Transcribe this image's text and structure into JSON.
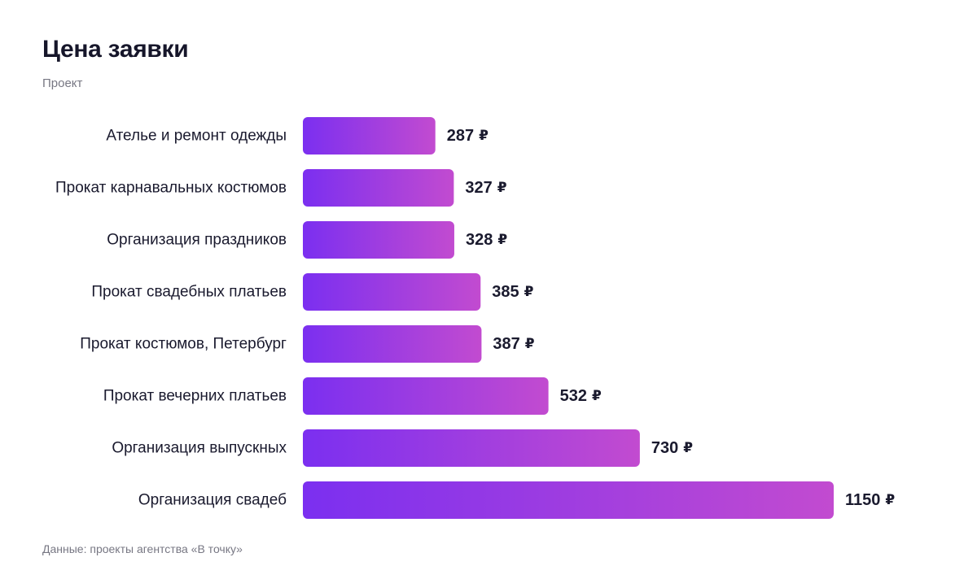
{
  "title": "Цена заявки",
  "subtitle": "Проект",
  "footer": "Данные: проекты агентства «В точку»",
  "colors": {
    "bar_start": "#7b2ff0",
    "bar_end": "#c24bd0",
    "text": "#1a1a2e",
    "muted": "#777783"
  },
  "chart_data": {
    "type": "bar",
    "orientation": "horizontal",
    "unit": "₽",
    "categories": [
      "Ателье и ремонт одежды",
      "Прокат карнавальных костюмов",
      "Организация праздников",
      "Прокат свадебных платьев",
      "Прокат костюмов, Петербург",
      "Прокат вечерних платьев",
      "Организация выпускных",
      "Организация свадеб"
    ],
    "values": [
      287,
      327,
      328,
      385,
      387,
      532,
      730,
      1150
    ],
    "xlim": [
      0,
      1150
    ],
    "grid": false
  }
}
